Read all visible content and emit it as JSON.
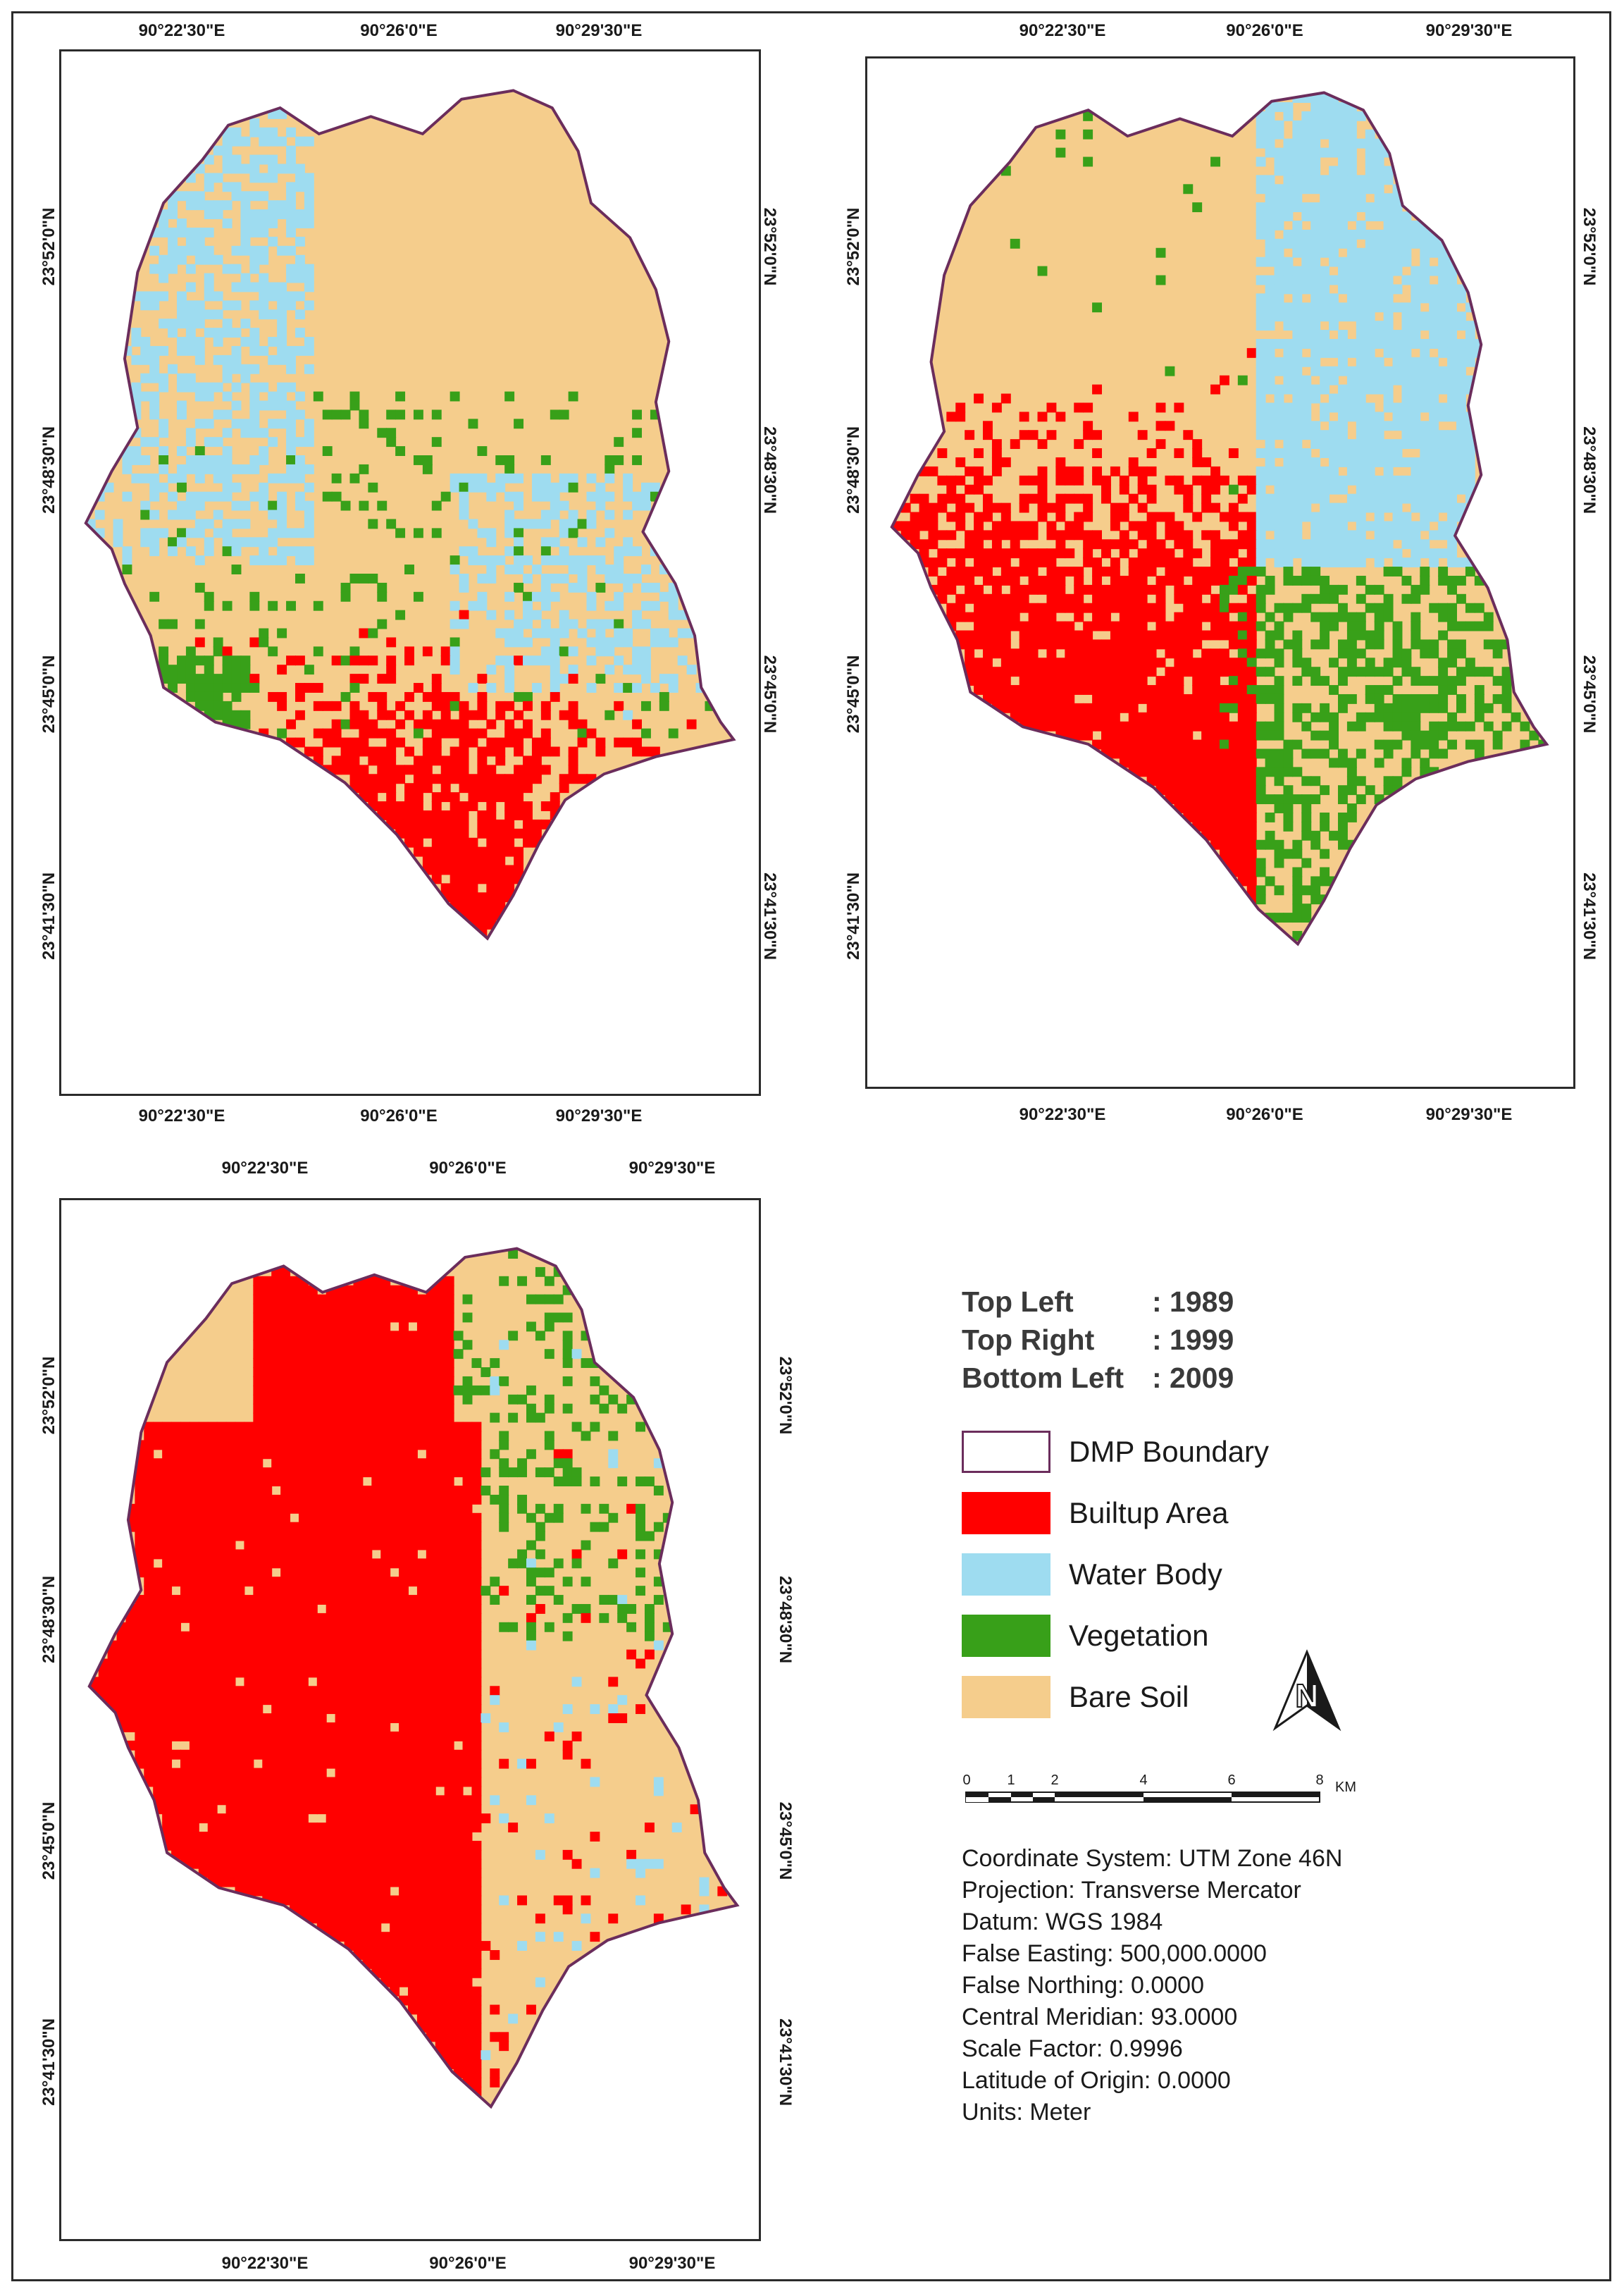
{
  "maps": [
    {
      "id": "top-left",
      "year": "1989",
      "top_ticks": [
        "90°22'30\"E",
        "90°26'0\"E",
        "90°29'30\"E"
      ],
      "bottom_ticks": [
        "90°22'30\"E",
        "90°26'0\"E",
        "90°29'30\"E"
      ],
      "left_ticks": [
        "23°52'0\"N",
        "23°48'30\"N",
        "23°45'0\"N",
        "23°41'30\"N"
      ],
      "right_ticks": [
        "23°52'0\"N",
        "23°48'30\"N",
        "23°45'0\"N",
        "23°41'30\"N"
      ]
    },
    {
      "id": "top-right",
      "year": "1999",
      "top_ticks": [
        "90°22'30\"E",
        "90°26'0\"E",
        "90°29'30\"E"
      ],
      "bottom_ticks": [
        "90°22'30\"E",
        "90°26'0\"E",
        "90°29'30\"E"
      ],
      "left_ticks": [
        "23°52'0\"N",
        "23°48'30\"N",
        "23°45'0\"N",
        "23°41'30\"N"
      ],
      "right_ticks": [
        "23°52'0\"N",
        "23°48'30\"N",
        "23°45'0\"N",
        "23°41'30\"N"
      ]
    },
    {
      "id": "bottom-left",
      "year": "2009",
      "top_ticks": [
        "90°22'30\"E",
        "90°26'0\"E",
        "90°29'30\"E"
      ],
      "bottom_ticks": [
        "90°22'30\"E",
        "90°26'0\"E",
        "90°29'30\"E"
      ],
      "left_ticks": [
        "23°52'0\"N",
        "23°48'30\"N",
        "23°45'0\"N",
        "23°41'30\"N"
      ],
      "right_ticks": [
        "23°52'0\"N",
        "23°48'30\"N",
        "23°45'0\"N",
        "23°41'30\"N"
      ]
    }
  ],
  "legend": {
    "years": [
      {
        "label": "Top Left",
        "value": ": 1989"
      },
      {
        "label": "Top Right",
        "value": ": 1999"
      },
      {
        "label": "Bottom Left",
        "value": ": 2009"
      }
    ],
    "classes": [
      {
        "name": "DMP Boundary",
        "color": "#ffffff",
        "border": "#6b2d5c"
      },
      {
        "name": "Builtup Area",
        "color": "#ff0000"
      },
      {
        "name": "Water Body",
        "color": "#9edcf0"
      },
      {
        "name": "Vegetation",
        "color": "#38a019"
      },
      {
        "name": "Bare Soil",
        "color": "#f5cd8c"
      }
    ],
    "north_arrow": "N",
    "scale": {
      "ticks": [
        "0",
        "1",
        "2",
        "4",
        "6",
        "8"
      ],
      "unit": "KM"
    },
    "projection_info": [
      "Coordinate System: UTM Zone 46N",
      "Projection: Transverse Mercator",
      "Datum: WGS 1984",
      "False Easting: 500,000.0000",
      "False Northing: 0.0000",
      "Central Meridian: 93.0000",
      "Scale Factor: 0.9996",
      "Latitude of Origin: 0.0000",
      "Units: Meter"
    ]
  },
  "colors": {
    "builtup": "#ff0000",
    "water": "#9edcf0",
    "vegetation": "#38a019",
    "bare_soil": "#f5cd8c",
    "boundary": "#6b2d5c"
  }
}
